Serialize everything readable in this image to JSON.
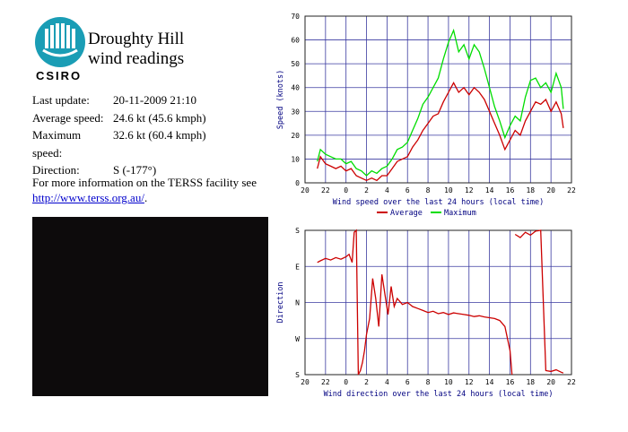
{
  "header": {
    "logo_text": "CSIRO",
    "title_line1": "Droughty Hill",
    "title_line2": "wind readings"
  },
  "readings": [
    {
      "label": "Last update:",
      "value": "20-11-2009 21:10"
    },
    {
      "label": "Average speed:",
      "value": "24.6 kt (45.6 kmph)"
    },
    {
      "label": "Maximum speed:",
      "value": "32.6 kt (60.4 kmph)"
    },
    {
      "label": "Direction:",
      "value": "S (-177°)"
    }
  ],
  "more_info": {
    "text": "For more information on the TERSS facility see",
    "link": "http://www.terss.org.au/",
    "after": "."
  },
  "colors": {
    "average": "#cc0000",
    "maximum": "#00dd00",
    "grid": "#3a3aa0",
    "link": "#0000cc",
    "webcam": "#0d0b0c"
  },
  "chart_data": [
    {
      "type": "line",
      "xlabel": "Wind speed over the last 24 hours (local time)",
      "ylabel": "Speed (knots)",
      "x_ticks": [
        "20",
        "22",
        "0",
        "2",
        "4",
        "6",
        "8",
        "10",
        "12",
        "14",
        "16",
        "18",
        "20",
        "22"
      ],
      "y_ticks": [
        "0",
        "10",
        "20",
        "30",
        "40",
        "50",
        "60",
        "70"
      ],
      "ylim": [
        0,
        70
      ],
      "xlim": [
        20,
        46
      ],
      "legend": "bottom",
      "grid": true,
      "series": [
        {
          "name": "Average",
          "color": "#cc0000",
          "x": [
            21.2,
            21.5,
            22,
            22.5,
            23,
            23.5,
            24,
            24.5,
            25,
            25.5,
            26,
            26.5,
            27,
            27.5,
            28,
            28.5,
            29,
            29.5,
            30,
            30.5,
            31,
            31.5,
            32,
            32.5,
            33,
            33.5,
            34,
            34.5,
            35,
            35.5,
            36,
            36.5,
            37,
            37.5,
            38,
            38.5,
            39,
            39.5,
            40,
            40.5,
            41,
            41.5,
            42,
            42.5,
            43,
            43.5,
            44,
            44.5,
            45,
            45.2
          ],
          "values": [
            6,
            11,
            8,
            7,
            6,
            7,
            5,
            6,
            3,
            2,
            1,
            2,
            1,
            3,
            3,
            6,
            9,
            10,
            11,
            15,
            18,
            22,
            25,
            28,
            29,
            34,
            38,
            42,
            38,
            40,
            37,
            40,
            38,
            35,
            30,
            25,
            20,
            14,
            18,
            22,
            20,
            26,
            30,
            34,
            33,
            35,
            30,
            34,
            29,
            23
          ]
        },
        {
          "name": "Maximum",
          "color": "#00dd00",
          "x": [
            21.2,
            21.5,
            22,
            22.5,
            23,
            23.5,
            24,
            24.5,
            25,
            25.5,
            26,
            26.5,
            27,
            27.5,
            28,
            28.5,
            29,
            29.5,
            30,
            30.5,
            31,
            31.5,
            32,
            32.5,
            33,
            33.5,
            34,
            34.5,
            35,
            35.5,
            36,
            36.5,
            37,
            37.5,
            38,
            38.5,
            39,
            39.5,
            40,
            40.5,
            41,
            41.5,
            42,
            42.5,
            43,
            43.5,
            44,
            44.5,
            45,
            45.2
          ],
          "values": [
            9,
            14,
            12,
            11,
            10,
            10,
            8,
            9,
            6,
            5,
            3,
            5,
            4,
            6,
            7,
            10,
            14,
            15,
            17,
            22,
            27,
            33,
            36,
            40,
            44,
            52,
            59,
            64,
            55,
            58,
            52,
            58,
            55,
            48,
            40,
            32,
            26,
            19,
            24,
            28,
            26,
            36,
            43,
            44,
            40,
            42,
            38,
            46,
            40,
            31
          ]
        }
      ]
    },
    {
      "type": "line",
      "xlabel": "Wind direction over the last 24 hours (local time)",
      "ylabel": "Direction",
      "x_ticks": [
        "20",
        "22",
        "0",
        "2",
        "4",
        "6",
        "8",
        "10",
        "12",
        "14",
        "16",
        "18",
        "20",
        "22"
      ],
      "y_ticks": [
        "S",
        "W",
        "N",
        "E",
        "S"
      ],
      "ylim": [
        -180,
        180
      ],
      "xlim": [
        20,
        46
      ],
      "grid": true,
      "series": [
        {
          "color": "#cc0000",
          "x": [
            21.2,
            21.5,
            22,
            22.5,
            23,
            23.5,
            24,
            24.3,
            24.6,
            24.8,
            25,
            25.2,
            25.4,
            25.6,
            25.8,
            26,
            26.3,
            26.6,
            26.9,
            27.2,
            27.5,
            27.8,
            28.1,
            28.4,
            28.7,
            29,
            29.5,
            30,
            30.5,
            31,
            31.5,
            32,
            32.5,
            33,
            33.5,
            34,
            34.5,
            35,
            35.5,
            36,
            36.5,
            37,
            37.5,
            38,
            38.5,
            39,
            39.5,
            40,
            40.2
          ],
          "values": [
            100,
            104,
            110,
            106,
            112,
            108,
            114,
            120,
            100,
            175,
            180,
            -180,
            -170,
            -150,
            -120,
            -80,
            -40,
            60,
            10,
            -60,
            70,
            20,
            -30,
            40,
            -10,
            10,
            -5,
            0,
            -10,
            -15,
            -20,
            -25,
            -22,
            -28,
            -25,
            -30,
            -26,
            -28,
            -30,
            -32,
            -35,
            -33,
            -36,
            -38,
            -40,
            -45,
            -60,
            -120,
            -180
          ]
        },
        {
          "color": "#cc0000",
          "x": [
            40.5,
            41,
            41.5,
            42,
            42.5,
            43,
            43.5,
            44,
            44.5,
            45,
            45.2
          ],
          "values": [
            170,
            162,
            175,
            168,
            178,
            180,
            -170,
            -172,
            -168,
            -174,
            -176
          ]
        }
      ]
    }
  ]
}
